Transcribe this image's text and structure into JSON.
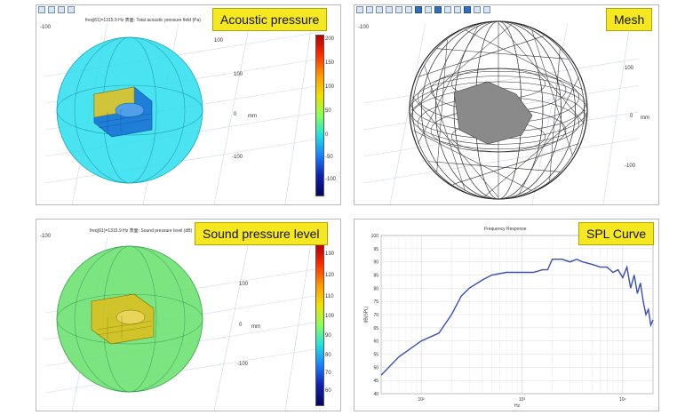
{
  "panels": {
    "acoustic": {
      "label": "Acoustic pressure",
      "title": "freq(61)=1315.9 Hz  表面: Total acoustic pressure field (Pa)",
      "colorbar_ticks": [
        "200",
        "150",
        "100",
        "50",
        "0",
        "-50",
        "-100"
      ],
      "axis_ticks": [
        "100",
        "0",
        "-100"
      ],
      "axis_unit": "mm",
      "left_tick": "-100"
    },
    "mesh": {
      "label": "Mesh",
      "axis_ticks": [
        "100",
        "0",
        "-100"
      ],
      "axis_unit": "mm",
      "left_tick": "-100"
    },
    "spl": {
      "label": "Sound pressure level",
      "title": "freq(61)=1315.9 Hz  表面: Sound pressure level (dB)",
      "colorbar_ticks": [
        "130",
        "120",
        "110",
        "100",
        "90",
        "80",
        "70",
        "60"
      ],
      "axis_ticks": [
        "100",
        "0",
        "-100"
      ],
      "axis_unit": "mm",
      "left_tick": "-100"
    },
    "curve": {
      "label": "SPL Curve"
    }
  },
  "chart_data": {
    "type": "line",
    "title": "Frequency Response",
    "ylabel": "dB(SPL)",
    "xlabel": "Hz",
    "xscale": "log",
    "xlim": [
      40,
      20000
    ],
    "ylim": [
      40,
      100
    ],
    "y_ticks": [
      40,
      45,
      50,
      55,
      60,
      65,
      70,
      75,
      80,
      85,
      90,
      95,
      100
    ],
    "x_ticks": [
      "10²",
      "10³",
      "10⁴"
    ],
    "grid": true,
    "series": [
      {
        "color": "#3a4fb0",
        "points": [
          [
            40,
            47
          ],
          [
            60,
            54
          ],
          [
            100,
            60
          ],
          [
            150,
            63
          ],
          [
            200,
            70
          ],
          [
            250,
            77
          ],
          [
            300,
            80
          ],
          [
            400,
            83
          ],
          [
            500,
            85
          ],
          [
            700,
            86
          ],
          [
            1000,
            86
          ],
          [
            1300,
            86
          ],
          [
            1600,
            87
          ],
          [
            1800,
            87
          ],
          [
            2000,
            91
          ],
          [
            2500,
            91
          ],
          [
            3000,
            90
          ],
          [
            3500,
            91
          ],
          [
            4000,
            90
          ],
          [
            5000,
            89
          ],
          [
            6000,
            88
          ],
          [
            7000,
            88
          ],
          [
            8000,
            86
          ],
          [
            9000,
            87
          ],
          [
            10000,
            84
          ],
          [
            11000,
            88
          ],
          [
            12000,
            80
          ],
          [
            13000,
            85
          ],
          [
            14000,
            78
          ],
          [
            15000,
            82
          ],
          [
            16000,
            75
          ],
          [
            17000,
            70
          ],
          [
            18000,
            72
          ],
          [
            19000,
            66
          ],
          [
            20000,
            68
          ]
        ]
      }
    ]
  },
  "colors": {
    "label_bg": "#f6e820",
    "acoustic_fill": "#22ddee",
    "spl_fill": "#66e06a",
    "curve_line": "#3a4fb0"
  }
}
